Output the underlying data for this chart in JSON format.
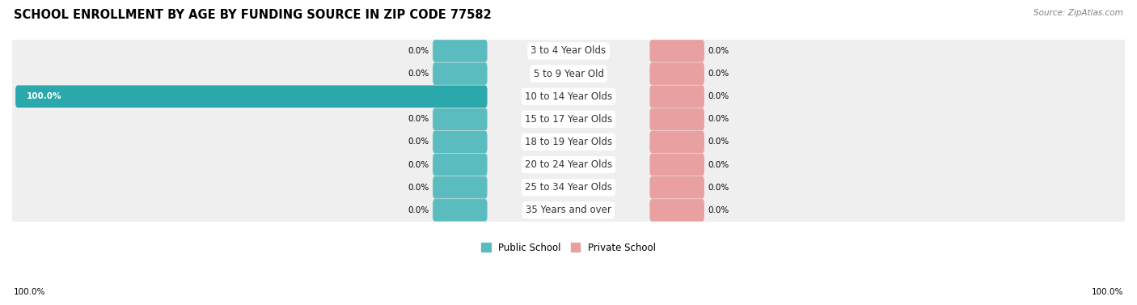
{
  "title": "SCHOOL ENROLLMENT BY AGE BY FUNDING SOURCE IN ZIP CODE 77582",
  "source_text": "Source: ZipAtlas.com",
  "categories": [
    "3 to 4 Year Olds",
    "5 to 9 Year Old",
    "10 to 14 Year Olds",
    "15 to 17 Year Olds",
    "18 to 19 Year Olds",
    "20 to 24 Year Olds",
    "25 to 34 Year Olds",
    "35 Years and over"
  ],
  "public_values": [
    0.0,
    0.0,
    100.0,
    0.0,
    0.0,
    0.0,
    0.0,
    0.0
  ],
  "private_values": [
    0.0,
    0.0,
    0.0,
    0.0,
    0.0,
    0.0,
    0.0,
    0.0
  ],
  "public_color": "#5bbcbf",
  "public_color_full": "#2aa8ab",
  "private_color": "#e8a0a0",
  "bg_row_color": "#efefef",
  "axis_label_left": "100.0%",
  "axis_label_right": "100.0%",
  "title_fontsize": 10.5,
  "label_fontsize": 7.5,
  "category_fontsize": 8.5,
  "source_fontsize": 7.5
}
